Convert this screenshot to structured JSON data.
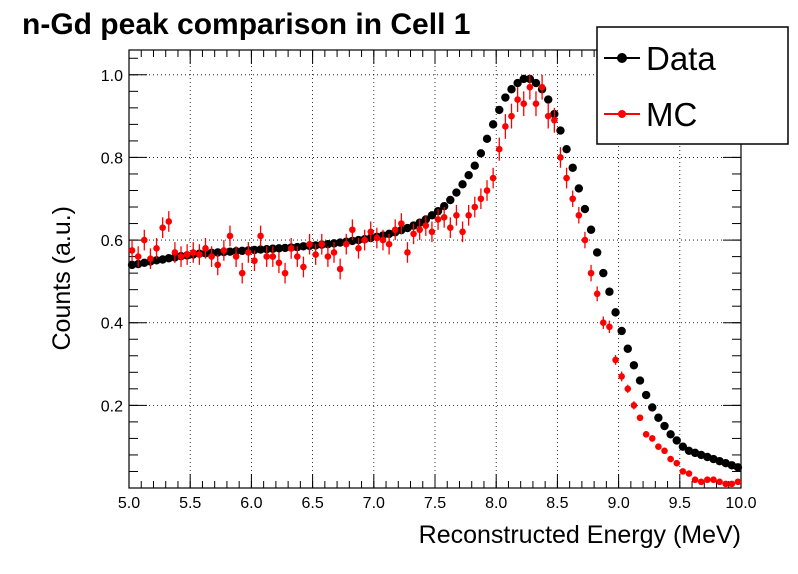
{
  "chart_data": {
    "type": "scatter",
    "title": "n-Gd peak comparison in Cell 1",
    "xlabel": "Reconstructed Energy (MeV)",
    "ylabel": "Counts (a.u.)",
    "xlim": [
      5.0,
      10.0
    ],
    "ylim": [
      0.0,
      1.06
    ],
    "xticks": [
      "5.0",
      "5.5",
      "6.0",
      "6.5",
      "7.0",
      "7.5",
      "8.0",
      "8.5",
      "9.0",
      "9.5",
      "10.0"
    ],
    "yticks": [
      "0.2",
      "0.4",
      "0.6",
      "0.8",
      "1.0"
    ],
    "grid": true,
    "legend_position": "top-right",
    "series": [
      {
        "name": "Data",
        "color": "#000000",
        "x": [
          5.025,
          5.075,
          5.125,
          5.175,
          5.225,
          5.275,
          5.325,
          5.375,
          5.425,
          5.475,
          5.525,
          5.575,
          5.625,
          5.675,
          5.725,
          5.775,
          5.825,
          5.875,
          5.925,
          5.975,
          6.025,
          6.075,
          6.125,
          6.175,
          6.225,
          6.275,
          6.325,
          6.375,
          6.425,
          6.475,
          6.525,
          6.575,
          6.625,
          6.675,
          6.725,
          6.775,
          6.825,
          6.875,
          6.925,
          6.975,
          7.025,
          7.075,
          7.125,
          7.175,
          7.225,
          7.275,
          7.325,
          7.375,
          7.425,
          7.475,
          7.525,
          7.575,
          7.625,
          7.675,
          7.725,
          7.775,
          7.825,
          7.875,
          7.925,
          7.975,
          8.025,
          8.075,
          8.125,
          8.175,
          8.225,
          8.275,
          8.325,
          8.375,
          8.425,
          8.475,
          8.525,
          8.575,
          8.625,
          8.675,
          8.725,
          8.775,
          8.825,
          8.875,
          8.925,
          8.975,
          9.025,
          9.075,
          9.125,
          9.175,
          9.225,
          9.275,
          9.325,
          9.375,
          9.425,
          9.475,
          9.525,
          9.575,
          9.625,
          9.675,
          9.725,
          9.775,
          9.825,
          9.875,
          9.925,
          9.975
        ],
        "y": [
          0.54,
          0.542,
          0.545,
          0.548,
          0.551,
          0.553,
          0.556,
          0.558,
          0.561,
          0.563,
          0.565,
          0.567,
          0.568,
          0.569,
          0.57,
          0.571,
          0.572,
          0.573,
          0.574,
          0.575,
          0.576,
          0.577,
          0.578,
          0.579,
          0.58,
          0.581,
          0.582,
          0.583,
          0.585,
          0.586,
          0.587,
          0.589,
          0.59,
          0.592,
          0.594,
          0.596,
          0.598,
          0.6,
          0.602,
          0.605,
          0.608,
          0.611,
          0.615,
          0.619,
          0.624,
          0.629,
          0.635,
          0.642,
          0.65,
          0.66,
          0.67,
          0.682,
          0.697,
          0.715,
          0.735,
          0.757,
          0.78,
          0.81,
          0.845,
          0.88,
          0.915,
          0.945,
          0.965,
          0.98,
          0.99,
          0.99,
          0.98,
          0.965,
          0.94,
          0.905,
          0.865,
          0.82,
          0.775,
          0.725,
          0.675,
          0.625,
          0.57,
          0.52,
          0.475,
          0.425,
          0.38,
          0.337,
          0.297,
          0.26,
          0.225,
          0.195,
          0.17,
          0.15,
          0.13,
          0.115,
          0.1,
          0.09,
          0.085,
          0.08,
          0.075,
          0.07,
          0.065,
          0.06,
          0.055,
          0.05
        ]
      },
      {
        "name": "MC",
        "color": "#ff0000",
        "x": [
          5.025,
          5.075,
          5.125,
          5.175,
          5.225,
          5.275,
          5.325,
          5.375,
          5.425,
          5.475,
          5.525,
          5.575,
          5.625,
          5.675,
          5.725,
          5.775,
          5.825,
          5.875,
          5.925,
          5.975,
          6.025,
          6.075,
          6.125,
          6.175,
          6.225,
          6.275,
          6.325,
          6.375,
          6.425,
          6.475,
          6.525,
          6.575,
          6.625,
          6.675,
          6.725,
          6.775,
          6.825,
          6.875,
          6.925,
          6.975,
          7.025,
          7.075,
          7.125,
          7.175,
          7.225,
          7.275,
          7.325,
          7.375,
          7.425,
          7.475,
          7.525,
          7.575,
          7.625,
          7.675,
          7.725,
          7.775,
          7.825,
          7.875,
          7.925,
          7.975,
          8.025,
          8.075,
          8.125,
          8.175,
          8.225,
          8.275,
          8.325,
          8.375,
          8.425,
          8.475,
          8.525,
          8.575,
          8.625,
          8.675,
          8.725,
          8.775,
          8.825,
          8.875,
          8.925,
          8.975,
          9.025,
          9.075,
          9.125,
          9.175,
          9.225,
          9.275,
          9.325,
          9.375,
          9.425,
          9.475,
          9.525,
          9.575,
          9.625,
          9.675,
          9.725,
          9.775,
          9.825,
          9.875,
          9.925,
          9.975
        ],
        "y": [
          0.575,
          0.56,
          0.6,
          0.555,
          0.58,
          0.63,
          0.645,
          0.57,
          0.56,
          0.565,
          0.57,
          0.565,
          0.58,
          0.56,
          0.54,
          0.575,
          0.61,
          0.56,
          0.52,
          0.57,
          0.55,
          0.61,
          0.56,
          0.56,
          0.545,
          0.52,
          0.58,
          0.56,
          0.535,
          0.59,
          0.565,
          0.59,
          0.56,
          0.57,
          0.53,
          0.59,
          0.625,
          0.58,
          0.6,
          0.62,
          0.605,
          0.6,
          0.59,
          0.625,
          0.64,
          0.57,
          0.615,
          0.625,
          0.635,
          0.62,
          0.65,
          0.655,
          0.63,
          0.66,
          0.62,
          0.66,
          0.68,
          0.7,
          0.72,
          0.75,
          0.82,
          0.875,
          0.9,
          0.94,
          0.93,
          0.97,
          0.93,
          0.97,
          0.9,
          0.89,
          0.8,
          0.75,
          0.7,
          0.66,
          0.6,
          0.52,
          0.47,
          0.4,
          0.39,
          0.31,
          0.27,
          0.24,
          0.2,
          0.17,
          0.13,
          0.12,
          0.1,
          0.09,
          0.07,
          0.06,
          0.04,
          0.035,
          0.02,
          0.015,
          0.02,
          0.02,
          0.015,
          0.01,
          0.01,
          0.015
        ],
        "err": [
          0.025,
          0.025,
          0.025,
          0.025,
          0.025,
          0.025,
          0.025,
          0.025,
          0.025,
          0.025,
          0.025,
          0.025,
          0.025,
          0.025,
          0.025,
          0.025,
          0.025,
          0.025,
          0.025,
          0.025,
          0.025,
          0.025,
          0.025,
          0.025,
          0.025,
          0.025,
          0.025,
          0.025,
          0.025,
          0.025,
          0.025,
          0.025,
          0.025,
          0.025,
          0.025,
          0.025,
          0.025,
          0.025,
          0.025,
          0.025,
          0.025,
          0.025,
          0.025,
          0.025,
          0.025,
          0.025,
          0.025,
          0.025,
          0.025,
          0.025,
          0.025,
          0.025,
          0.025,
          0.025,
          0.025,
          0.025,
          0.025,
          0.025,
          0.025,
          0.025,
          0.028,
          0.03,
          0.03,
          0.03,
          0.03,
          0.03,
          0.03,
          0.03,
          0.03,
          0.03,
          0.025,
          0.025,
          0.02,
          0.02,
          0.02,
          0.02,
          0.018,
          0.015,
          0.015,
          0.012,
          0.012,
          0.01,
          0.01,
          0.008,
          0.008,
          0.008,
          0.006,
          0.006,
          0.006,
          0.005,
          0.005,
          0.005,
          0.004,
          0.004,
          0.004,
          0.004,
          0.003,
          0.003,
          0.003,
          0.003
        ]
      }
    ]
  }
}
